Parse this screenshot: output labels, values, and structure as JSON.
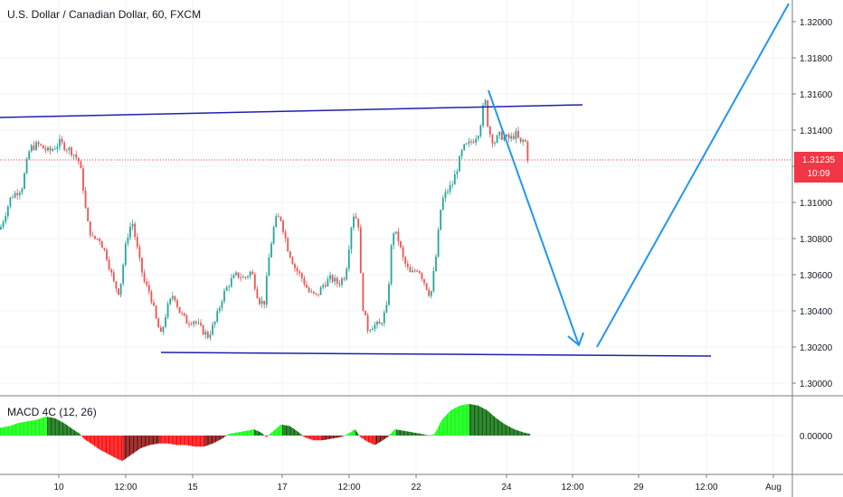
{
  "chart_data": [
    {
      "type": "candlestick",
      "title": "U.S. Dollar / Canadian Dollar, 60, FXCM",
      "y_ticks": [
        "1.32000",
        "1.31800",
        "1.31600",
        "1.31400",
        "1.31200",
        "1.31000",
        "1.30800",
        "1.30600",
        "1.30400",
        "1.30200",
        "1.30000"
      ],
      "ylim": [
        1.2993,
        1.3212
      ],
      "x_ticks": [
        "10",
        "12:00",
        "15",
        "17",
        "12:00",
        "22",
        "24",
        "12:00",
        "29",
        "12:00",
        "Aug"
      ],
      "current_price": "1.31235",
      "countdown": "10:09",
      "price_path": [
        [
          0,
          1.3085
        ],
        [
          12,
          1.3103
        ],
        [
          24,
          1.3108
        ],
        [
          33,
          1.313
        ],
        [
          42,
          1.3132
        ],
        [
          54,
          1.3128
        ],
        [
          66,
          1.3133
        ],
        [
          80,
          1.3128
        ],
        [
          88,
          1.3122
        ],
        [
          92,
          1.3108
        ],
        [
          96,
          1.309
        ],
        [
          102,
          1.308
        ],
        [
          110,
          1.308
        ],
        [
          118,
          1.307
        ],
        [
          126,
          1.3055
        ],
        [
          132,
          1.305
        ],
        [
          140,
          1.308
        ],
        [
          146,
          1.309
        ],
        [
          154,
          1.3068
        ],
        [
          160,
          1.3055
        ],
        [
          166,
          1.305
        ],
        [
          172,
          1.3036
        ],
        [
          178,
          1.3026
        ],
        [
          184,
          1.304
        ],
        [
          192,
          1.305
        ],
        [
          198,
          1.304
        ],
        [
          206,
          1.3034
        ],
        [
          214,
          1.3035
        ],
        [
          222,
          1.303
        ],
        [
          230,
          1.3026
        ],
        [
          238,
          1.3034
        ],
        [
          246,
          1.3048
        ],
        [
          254,
          1.3056
        ],
        [
          262,
          1.306
        ],
        [
          270,
          1.3058
        ],
        [
          278,
          1.3062
        ],
        [
          286,
          1.3046
        ],
        [
          292,
          1.3044
        ],
        [
          298,
          1.3072
        ],
        [
          304,
          1.309
        ],
        [
          310,
          1.3092
        ],
        [
          318,
          1.3075
        ],
        [
          326,
          1.3064
        ],
        [
          334,
          1.3058
        ],
        [
          342,
          1.305
        ],
        [
          350,
          1.3048
        ],
        [
          358,
          1.3055
        ],
        [
          366,
          1.3058
        ],
        [
          374,
          1.3055
        ],
        [
          382,
          1.306
        ],
        [
          390,
          1.3094
        ],
        [
          396,
          1.309
        ],
        [
          400,
          1.3046
        ],
        [
          406,
          1.303
        ],
        [
          412,
          1.3032
        ],
        [
          420,
          1.3032
        ],
        [
          428,
          1.3042
        ],
        [
          434,
          1.3085
        ],
        [
          440,
          1.308
        ],
        [
          446,
          1.3068
        ],
        [
          454,
          1.306
        ],
        [
          462,
          1.3064
        ],
        [
          470,
          1.3055
        ],
        [
          476,
          1.3048
        ],
        [
          482,
          1.307
        ],
        [
          488,
          1.31
        ],
        [
          494,
          1.3106
        ],
        [
          500,
          1.311
        ],
        [
          506,
          1.312
        ],
        [
          512,
          1.313
        ],
        [
          518,
          1.3132
        ],
        [
          524,
          1.3135
        ],
        [
          530,
          1.314
        ],
        [
          536,
          1.3158
        ],
        [
          540,
          1.314
        ],
        [
          546,
          1.3133
        ],
        [
          552,
          1.3137
        ],
        [
          558,
          1.3136
        ],
        [
          564,
          1.3135
        ],
        [
          570,
          1.3138
        ],
        [
          576,
          1.3132
        ],
        [
          580,
          1.3136
        ],
        [
          584,
          1.3123
        ]
      ]
    },
    {
      "type": "histogram",
      "title": "MACD 4C (12, 26)",
      "y_ticks": [
        "0.00000"
      ],
      "ylim": [
        -0.0012,
        0.0012
      ],
      "colors": {
        "pos_up": "#00ff00",
        "pos_down": "#006400",
        "neg_down": "#ff0000",
        "neg_up": "#800000"
      },
      "values": [
        [
          0,
          0.00025
        ],
        [
          10,
          0.0003
        ],
        [
          20,
          0.0004
        ],
        [
          30,
          0.00045
        ],
        [
          40,
          0.0005
        ],
        [
          50,
          0.0006
        ],
        [
          60,
          0.00055
        ],
        [
          70,
          0.0004
        ],
        [
          80,
          0.0002
        ],
        [
          88,
          5e-05
        ],
        [
          92,
          -0.0001
        ],
        [
          100,
          -0.00025
        ],
        [
          110,
          -0.00045
        ],
        [
          120,
          -0.0006
        ],
        [
          130,
          -0.00075
        ],
        [
          135,
          -0.0008
        ],
        [
          145,
          -0.0006
        ],
        [
          155,
          -0.0004
        ],
        [
          165,
          -0.0003
        ],
        [
          175,
          -0.00025
        ],
        [
          185,
          -0.00025
        ],
        [
          195,
          -0.0003
        ],
        [
          205,
          -0.0003
        ],
        [
          215,
          -0.00035
        ],
        [
          225,
          -0.00035
        ],
        [
          235,
          -0.00025
        ],
        [
          245,
          -0.0001
        ],
        [
          252,
          5e-05
        ],
        [
          262,
          0.0001
        ],
        [
          272,
          0.00015
        ],
        [
          280,
          0.0002
        ],
        [
          288,
          0.0001
        ],
        [
          294,
          -5e-05
        ],
        [
          300,
          0.0001
        ],
        [
          310,
          0.00035
        ],
        [
          320,
          0.0003
        ],
        [
          330,
          0.0001
        ],
        [
          336,
          -5e-05
        ],
        [
          346,
          -0.00015
        ],
        [
          356,
          -0.00015
        ],
        [
          366,
          -0.0001
        ],
        [
          376,
          -5e-05
        ],
        [
          384,
          5e-05
        ],
        [
          392,
          0.0002
        ],
        [
          398,
          -5e-05
        ],
        [
          406,
          -0.0002
        ],
        [
          414,
          -0.0003
        ],
        [
          420,
          -0.0002
        ],
        [
          428,
          -5e-05
        ],
        [
          436,
          0.0002
        ],
        [
          446,
          0.00015
        ],
        [
          456,
          0.0001
        ],
        [
          466,
          5e-05
        ],
        [
          474,
          0.0
        ],
        [
          480,
          5e-05
        ],
        [
          488,
          0.0005
        ],
        [
          498,
          0.0008
        ],
        [
          508,
          0.00095
        ],
        [
          518,
          0.001
        ],
        [
          528,
          0.00095
        ],
        [
          538,
          0.0008
        ],
        [
          548,
          0.00055
        ],
        [
          558,
          0.00035
        ],
        [
          568,
          0.0002
        ],
        [
          578,
          0.0001
        ],
        [
          586,
          5e-05
        ]
      ]
    }
  ],
  "drawings": {
    "line_color": "#1e22aa",
    "arrow_color": "#2196f3",
    "upper_trendline": [
      [
        0,
        1.3147
      ],
      [
        644,
        1.3154
      ]
    ],
    "lower_trendline": [
      [
        178,
        1.3017
      ],
      [
        786,
        1.3015
      ]
    ],
    "down_arrow": [
      [
        540,
        1.3162
      ],
      [
        640,
        1.3021
      ]
    ],
    "up_leg": [
      [
        660,
        1.302
      ],
      [
        872,
        1.321
      ]
    ]
  }
}
